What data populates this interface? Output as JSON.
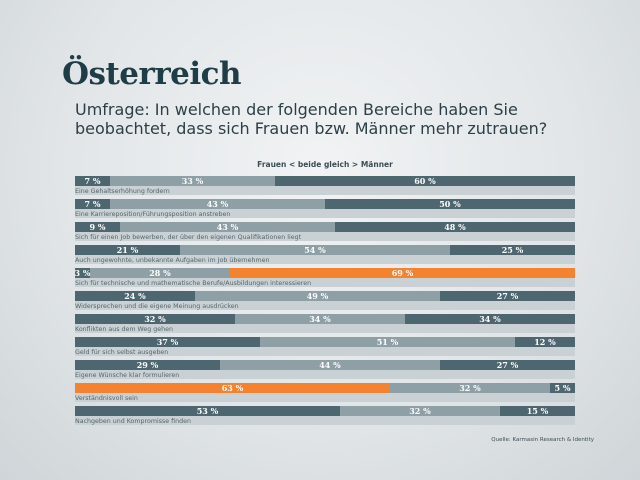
{
  "chart_data": {
    "type": "bar",
    "orientation": "horizontal",
    "stacked": true,
    "title": "Österreich",
    "subtitle": "Umfrage: In welchen der folgenden Bereiche haben Sie beobachtet, dass sich Frauen bzw. Männer mehr zutrauen?",
    "legend_text": "Frauen < beide gleich > Männer",
    "source": "Quelle: Karmasin Research & Identity",
    "xlim": [
      0,
      100
    ],
    "grid": false,
    "series": [
      {
        "name": "Frauen",
        "values": [
          7,
          7,
          9,
          21,
          3,
          24,
          32,
          37,
          29,
          63,
          53
        ]
      },
      {
        "name": "beide gleich",
        "values": [
          33,
          43,
          43,
          54,
          28,
          49,
          34,
          51,
          44,
          32,
          32
        ]
      },
      {
        "name": "Männer",
        "values": [
          60,
          50,
          48,
          25,
          69,
          27,
          34,
          12,
          27,
          5,
          15
        ]
      }
    ],
    "categories": [
      "Eine Gehaltserhöhung fordern",
      "Eine Karriereposition/Führungsposition anstreben",
      "Sich für einen Job bewerben, der über den eigenen Qualifikationen liegt",
      "Auch ungewohnte, unbekannte Aufgaben im Job übernehmen",
      "Sich für technische und mathematische Berufe/Ausbildungen interessieren",
      "Widersprechen und die eigene Meinung ausdrücken",
      "Konflikten aus dem Weg gehen",
      "Geld für sich selbst ausgeben",
      "Eigene Wünsche klar formulieren",
      "Verständnisvoll sein",
      "Nachgeben und Kompromisse finden"
    ],
    "highlights": [
      {
        "category_index": 4,
        "series_index": 2
      },
      {
        "category_index": 9,
        "series_index": 0
      }
    ],
    "value_suffix": " %",
    "colors": {
      "Frauen": "#4e666f",
      "beide gleich": "#8e9fa5",
      "Männer": "#4e666f",
      "highlight": "#f5822f",
      "label_band": "#c9d1d4"
    }
  }
}
